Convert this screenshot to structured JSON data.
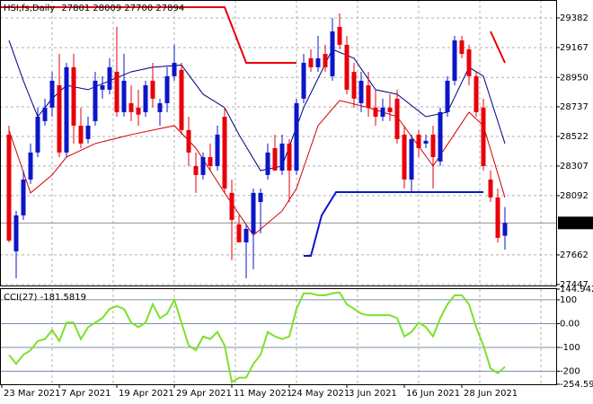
{
  "chart_data": [
    {
      "type": "candlestick",
      "symbol": "HSI,fs,Daily",
      "up_color": "#0b16c8",
      "down_color": "#e8000b",
      "grid": true,
      "ylim": [
        27440,
        29512
      ],
      "yticks": [
        29382,
        29167,
        28950,
        28737,
        28522,
        28307,
        28092,
        27662,
        27447
      ],
      "categories": [
        "23 Mar 2021",
        null,
        null,
        null,
        null,
        null,
        null,
        null,
        "7 Apr 2021",
        null,
        null,
        null,
        null,
        null,
        null,
        null,
        "19 Apr 2021",
        null,
        null,
        null,
        null,
        null,
        null,
        null,
        "29 Apr 2021",
        null,
        null,
        null,
        null,
        null,
        null,
        null,
        "11 May 2021",
        null,
        null,
        null,
        null,
        null,
        null,
        null,
        "24 May 2021",
        null,
        null,
        null,
        null,
        null,
        null,
        null,
        "3 Jun 2021",
        null,
        null,
        null,
        null,
        null,
        null,
        null,
        "16 Jun 2021",
        null,
        null,
        null,
        null,
        null,
        null,
        null,
        "28 Jun 2021",
        null,
        null,
        null,
        null,
        null
      ],
      "ohlc": [
        [
          28535,
          28600,
          27753,
          27766
        ],
        [
          27688,
          27981,
          27493,
          27949
        ],
        [
          27949,
          28274,
          27916,
          28209
        ],
        [
          28209,
          28470,
          28177,
          28405
        ],
        [
          28405,
          28731,
          28372,
          28665
        ],
        [
          28633,
          28796,
          28600,
          28731
        ],
        [
          28731,
          28991,
          28665,
          28926
        ],
        [
          28893,
          29121,
          28372,
          28405
        ],
        [
          28405,
          29056,
          28372,
          29024
        ],
        [
          29024,
          29121,
          28470,
          28600
        ],
        [
          28600,
          28731,
          28437,
          28470
        ],
        [
          28503,
          28665,
          28470,
          28600
        ],
        [
          28633,
          28991,
          28600,
          28926
        ],
        [
          28861,
          28959,
          28796,
          28893
        ],
        [
          28861,
          29089,
          28828,
          29024
        ],
        [
          28991,
          29317,
          28665,
          28698
        ],
        [
          28698,
          29121,
          28665,
          28926
        ],
        [
          28763,
          28893,
          28633,
          28698
        ],
        [
          28731,
          28861,
          28600,
          28680
        ],
        [
          28698,
          28926,
          28665,
          28893
        ],
        [
          28926,
          29056,
          28731,
          28796
        ],
        [
          28698,
          28796,
          28600,
          28763
        ],
        [
          28763,
          29024,
          28698,
          28959
        ],
        [
          28959,
          29187,
          28926,
          29056
        ],
        [
          29005,
          29056,
          28535,
          28568
        ],
        [
          28568,
          28665,
          28307,
          28405
        ],
        [
          28307,
          28405,
          28112,
          28242
        ],
        [
          28242,
          28405,
          28209,
          28372
        ],
        [
          28372,
          28470,
          28274,
          28307
        ],
        [
          28307,
          28600,
          28274,
          28535
        ],
        [
          28665,
          28731,
          28112,
          28144
        ],
        [
          28112,
          28209,
          27623,
          27916
        ],
        [
          27884,
          27949,
          27753,
          27753
        ],
        [
          27753,
          27884,
          27493,
          27851
        ],
        [
          27818,
          28144,
          27558,
          28112
        ],
        [
          28046,
          28144,
          27818,
          28112
        ],
        [
          28242,
          28470,
          28209,
          28405
        ],
        [
          28437,
          28535,
          28274,
          28274
        ],
        [
          28274,
          28535,
          28242,
          28470
        ],
        [
          28470,
          28503,
          28046,
          28274
        ],
        [
          28274,
          28796,
          28242,
          28763
        ],
        [
          28796,
          29121,
          28763,
          29056
        ],
        [
          29089,
          29154,
          28991,
          29024
        ],
        [
          29024,
          29252,
          28991,
          29089
        ],
        [
          29121,
          29187,
          28991,
          29024
        ],
        [
          28959,
          29382,
          28926,
          29284
        ],
        [
          29317,
          29415,
          29154,
          29187
        ],
        [
          29187,
          29252,
          28828,
          28861
        ],
        [
          28991,
          29056,
          28731,
          28796
        ],
        [
          28763,
          28991,
          28698,
          28926
        ],
        [
          28893,
          28991,
          28665,
          28731
        ],
        [
          28731,
          28861,
          28600,
          28665
        ],
        [
          28665,
          28796,
          28633,
          28731
        ],
        [
          28731,
          28828,
          28633,
          28698
        ],
        [
          28796,
          28861,
          28470,
          28503
        ],
        [
          28535,
          28600,
          28144,
          28209
        ],
        [
          28209,
          28535,
          28112,
          28503
        ],
        [
          28535,
          28568,
          28372,
          28437
        ],
        [
          28470,
          28535,
          28437,
          28490
        ],
        [
          28535,
          28600,
          28144,
          28372
        ],
        [
          28340,
          28731,
          28307,
          28698
        ],
        [
          28698,
          28959,
          28665,
          28926
        ],
        [
          28926,
          29252,
          28893,
          29219
        ],
        [
          29219,
          29252,
          29089,
          29121
        ],
        [
          29154,
          29187,
          28893,
          28959
        ],
        [
          28959,
          28991,
          28665,
          28698
        ],
        [
          28731,
          28796,
          28274,
          28307
        ],
        [
          28209,
          28274,
          28046,
          28079
        ],
        [
          28079,
          28144,
          27753,
          27786
        ],
        [
          27801,
          28009,
          27700,
          27894
        ]
      ],
      "overlays": [
        {
          "color": "#000080",
          "width": 1,
          "x": [
            0,
            2,
            4,
            6,
            8,
            11,
            14,
            17,
            20,
            24,
            27,
            30,
            32,
            35,
            38,
            41,
            45,
            48,
            51,
            54,
            58,
            61,
            64,
            66,
            69
          ],
          "values": [
            29219,
            28926,
            28665,
            28796,
            28893,
            28861,
            28926,
            28991,
            29024,
            29040,
            28828,
            28731,
            28535,
            28274,
            28307,
            28731,
            29154,
            29089,
            28861,
            28828,
            28665,
            28698,
            29024,
            28959,
            28470
          ]
        },
        {
          "color": "#d00000",
          "width": 1,
          "x": [
            0,
            3,
            6,
            8,
            12,
            17,
            23,
            26,
            30,
            34,
            38,
            40,
            43,
            46,
            50,
            54,
            59,
            64,
            66,
            69
          ],
          "values": [
            28568,
            28112,
            28242,
            28372,
            28470,
            28535,
            28600,
            28437,
            28112,
            27805,
            27981,
            28144,
            28600,
            28783,
            28731,
            28665,
            28307,
            28698,
            28600,
            28079
          ]
        },
        {
          "color": "#e8000b",
          "width": 2,
          "x": [
            -1.5,
            30,
            33,
            40
          ],
          "values": [
            29460,
            29460,
            29056,
            29056
          ]
        },
        {
          "color": "#e8000b",
          "width": 2,
          "x": [
            67,
            69
          ],
          "values": [
            29284,
            29056
          ]
        },
        {
          "color": "#0b16c8",
          "width": 2,
          "x": [
            41,
            42,
            43.5,
            45.5,
            66
          ],
          "values": [
            27655,
            27655,
            27949,
            28118,
            28118
          ]
        }
      ]
    },
    {
      "type": "line",
      "label": "CCI(27)",
      "color": "#7ee02c",
      "ylim": [
        -254.5929,
        144.9423
      ],
      "yticks": [
        144.9423,
        100,
        {
          "value": 0,
          "label": "0.00"
        },
        -100,
        -200,
        -254.5929
      ],
      "values": [
        -131,
        -169,
        -131,
        -112,
        -73,
        -65,
        -27,
        -73,
        4,
        4,
        -65,
        -15,
        4,
        23,
        62,
        73,
        62,
        4,
        -15,
        4,
        81,
        23,
        42,
        100,
        4,
        -92,
        -112,
        -54,
        -65,
        -35,
        -92,
        -246,
        -227,
        -227,
        -169,
        -131,
        -35,
        -54,
        -65,
        -54,
        62,
        127,
        127,
        119,
        119,
        127,
        131,
        81,
        62,
        42,
        35,
        35,
        35,
        35,
        23,
        -54,
        -35,
        4,
        -15,
        -54,
        23,
        81,
        119,
        119,
        81,
        -15,
        -92,
        -188,
        -208,
        -181.5819
      ]
    }
  ]
}
